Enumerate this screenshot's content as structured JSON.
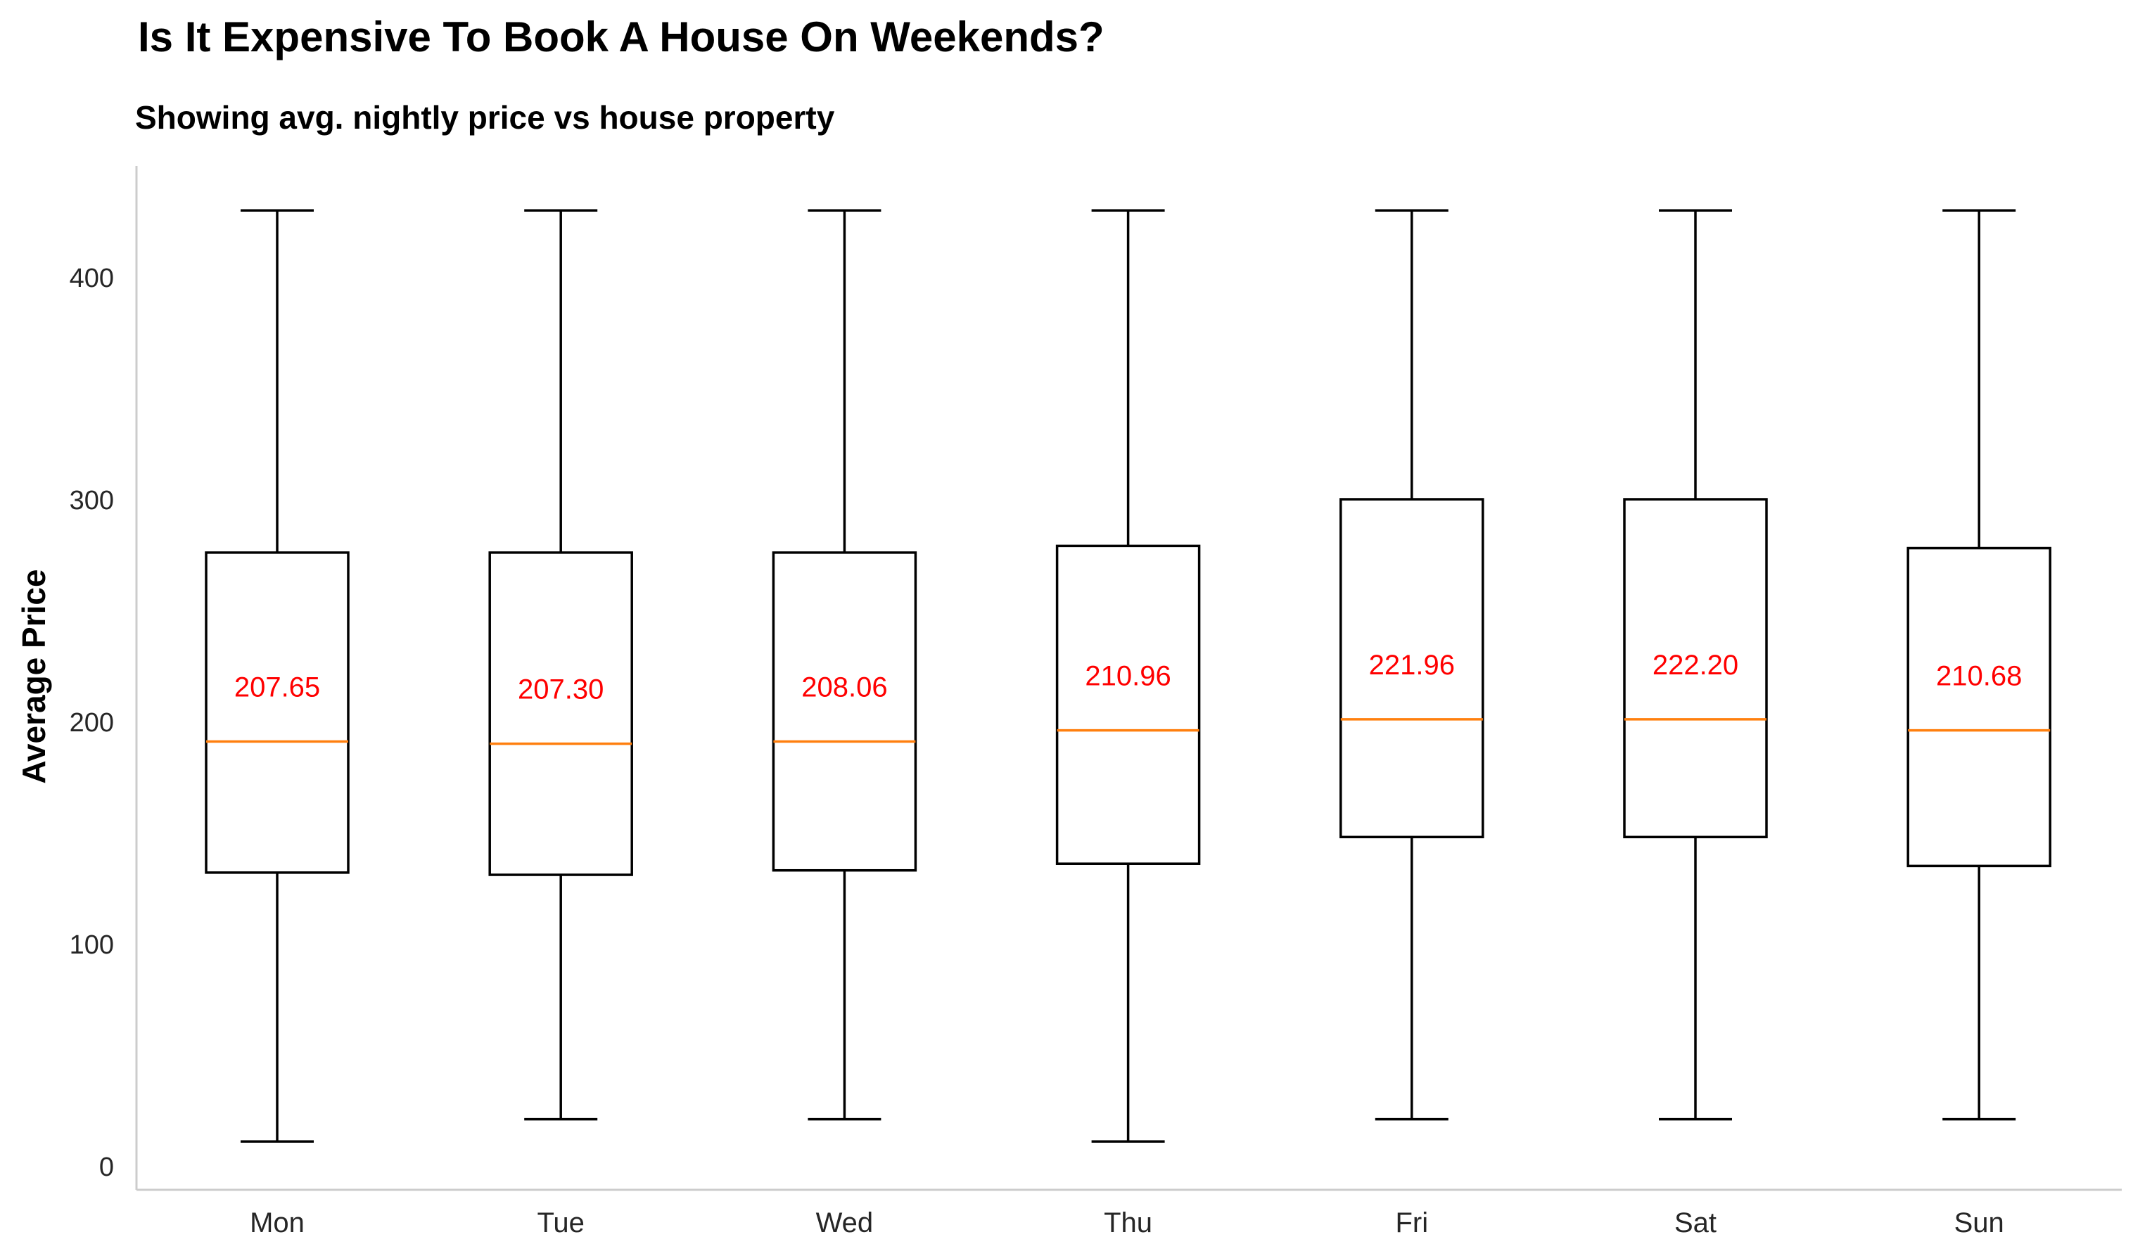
{
  "chart_data": {
    "type": "box",
    "title": "Is It Expensive To Book A House On Weekends?",
    "subtitle": "Showing avg. nightly price vs house property",
    "xlabel": "",
    "ylabel": "Average Price",
    "ylim": [
      -10,
      450
    ],
    "yticks": [
      0,
      100,
      200,
      300,
      400
    ],
    "grid": false,
    "categories": [
      "Mon",
      "Tue",
      "Wed",
      "Thu",
      "Fri",
      "Sat",
      "Sun"
    ],
    "boxes": [
      {
        "category": "Mon",
        "whisker_low": 11,
        "q1": 132,
        "median": 191,
        "q3": 276,
        "whisker_high": 430,
        "mean_label": "207.65"
      },
      {
        "category": "Tue",
        "whisker_low": 21,
        "q1": 131,
        "median": 190,
        "q3": 276,
        "whisker_high": 430,
        "mean_label": "207.30"
      },
      {
        "category": "Wed",
        "whisker_low": 21,
        "q1": 133,
        "median": 191,
        "q3": 276,
        "whisker_high": 430,
        "mean_label": "208.06"
      },
      {
        "category": "Thu",
        "whisker_low": 11,
        "q1": 136,
        "median": 196,
        "q3": 279,
        "whisker_high": 430,
        "mean_label": "210.96"
      },
      {
        "category": "Fri",
        "whisker_low": 21,
        "q1": 148,
        "median": 201,
        "q3": 300,
        "whisker_high": 430,
        "mean_label": "221.96"
      },
      {
        "category": "Sat",
        "whisker_low": 21,
        "q1": 148,
        "median": 201,
        "q3": 300,
        "whisker_high": 430,
        "mean_label": "222.20"
      },
      {
        "category": "Sun",
        "whisker_low": 21,
        "q1": 135,
        "median": 196,
        "q3": 278,
        "whisker_high": 430,
        "mean_label": "210.68"
      }
    ],
    "colors": {
      "box": "#000000",
      "median": "#ff7f0e",
      "mean_label": "#ff0000",
      "axis": "#cccccc"
    }
  }
}
